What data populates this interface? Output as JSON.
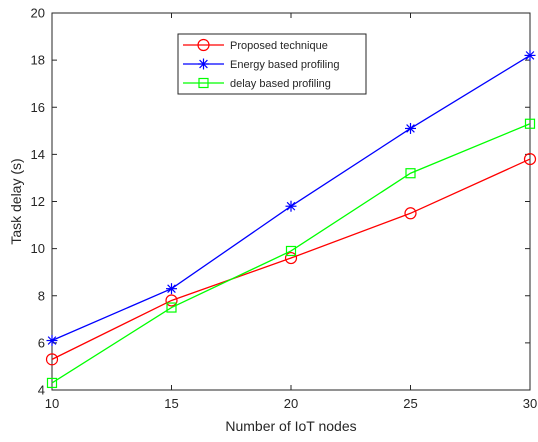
{
  "chart_data": {
    "type": "line",
    "title": "",
    "xlabel": "Number of IoT nodes",
    "ylabel": "Task delay (s)",
    "x": [
      10,
      15,
      20,
      25,
      30
    ],
    "xlim": [
      10,
      30
    ],
    "ylim": [
      4,
      20
    ],
    "xticks": [
      10,
      15,
      20,
      25,
      30
    ],
    "yticks": [
      4,
      6,
      8,
      10,
      12,
      14,
      16,
      18,
      20
    ],
    "grid": false,
    "legend_position": "top-center",
    "series": [
      {
        "name": "Proposed technique",
        "values": [
          5.3,
          7.8,
          9.6,
          11.5,
          13.8
        ],
        "color": "#ff0000",
        "marker": "circle"
      },
      {
        "name": "Energy based profiling",
        "values": [
          6.1,
          8.3,
          11.8,
          15.1,
          18.2
        ],
        "color": "#0000ff",
        "marker": "asterisk"
      },
      {
        "name": "delay based profiling",
        "values": [
          4.3,
          7.5,
          9.9,
          13.2,
          15.3
        ],
        "color": "#00ff00",
        "marker": "square"
      }
    ]
  }
}
